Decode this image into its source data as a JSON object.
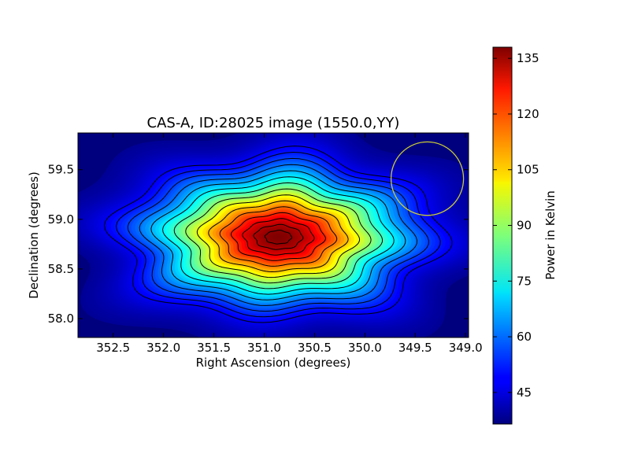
{
  "chart_data": [
    {
      "type": "heatmap",
      "title": "CAS-A, ID:28025 image (1550.0,YY)",
      "xlabel": "Right Ascension (degrees)",
      "ylabel": "Declination (degrees)",
      "xlim": [
        352.85,
        348.97
      ],
      "ylim": [
        57.81,
        59.87
      ],
      "x_ticks": [
        352.5,
        352.0,
        351.5,
        351.0,
        350.5,
        350.0,
        349.5,
        349.0
      ],
      "x_tick_labels": [
        "352.5",
        "352.0",
        "351.5",
        "351.0",
        "350.5",
        "350.0",
        "349.5",
        "349.0"
      ],
      "y_ticks": [
        58.0,
        58.5,
        59.0,
        59.5
      ],
      "y_tick_labels": [
        "58.0",
        "58.5",
        "59.0",
        "59.5"
      ],
      "source_peak": {
        "ra": 350.86,
        "dec": 58.82,
        "value": 138
      },
      "background_value": 37,
      "contour_count": 15,
      "beam_circle": {
        "ra": 349.38,
        "dec": 59.41,
        "radius_ra": 0.36,
        "radius_dec": 0.37,
        "color": "#cccc33"
      },
      "grid": false,
      "colormap": "jet"
    },
    {
      "type": "colorbar",
      "label": "Power in Kelvin",
      "range": [
        36.5,
        138
      ],
      "ticks": [
        45,
        60,
        75,
        90,
        105,
        120,
        135
      ],
      "tick_labels": [
        "45",
        "60",
        "75",
        "90",
        "105",
        "120",
        "135"
      ],
      "colormap": "jet"
    }
  ]
}
